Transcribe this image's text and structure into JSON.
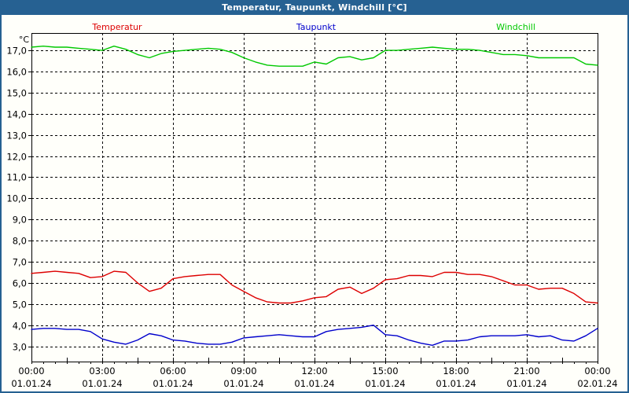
{
  "window": {
    "title": "Temperatur, Taupunkt, Windchill [°C]"
  },
  "legend": [
    {
      "label": "Temperatur",
      "color": "#dd0000"
    },
    {
      "label": "Taupunkt",
      "color": "#0000cc"
    },
    {
      "label": "Windchill",
      "color": "#00c800"
    }
  ],
  "axis": {
    "unit_label": "°C"
  },
  "colors": {
    "frame_blue": "#266192",
    "grid": "#000000"
  },
  "chart_data": {
    "type": "line",
    "title": "Temperatur, Taupunkt, Windchill [°C]",
    "xlabel": "",
    "ylabel": "°C",
    "grid": "dashed",
    "legend_position": "top",
    "xlim": [
      0,
      24
    ],
    "ylim": [
      2.28,
      17.82
    ],
    "x_unit": "hours since 01.01.24 00:00",
    "x": [
      0,
      0.5,
      1,
      1.5,
      2,
      2.5,
      3,
      3.5,
      4,
      4.5,
      5,
      5.5,
      6,
      6.5,
      7,
      7.5,
      8,
      8.5,
      9,
      9.5,
      10,
      10.5,
      11,
      11.5,
      12,
      12.5,
      13,
      13.5,
      14,
      14.5,
      15,
      15.5,
      16,
      16.5,
      17,
      17.5,
      18,
      18.5,
      19,
      19.5,
      20,
      20.5,
      21,
      21.5,
      22,
      22.5,
      23,
      23.5,
      24
    ],
    "y_ticks": [
      {
        "value": 17,
        "label": "17,0"
      },
      {
        "value": 16,
        "label": "16,0"
      },
      {
        "value": 15,
        "label": "15,0"
      },
      {
        "value": 14,
        "label": "14,0"
      },
      {
        "value": 13,
        "label": "13,0"
      },
      {
        "value": 12,
        "label": "12,0"
      },
      {
        "value": 11,
        "label": "11,0"
      },
      {
        "value": 10,
        "label": "10,0"
      },
      {
        "value": 9,
        "label": "9,0"
      },
      {
        "value": 8,
        "label": "8,0"
      },
      {
        "value": 7,
        "label": "7,0"
      },
      {
        "value": 6,
        "label": "6,0"
      },
      {
        "value": 5,
        "label": "5,0"
      },
      {
        "value": 4,
        "label": "4,0"
      },
      {
        "value": 3,
        "label": "3,0"
      }
    ],
    "x_ticks": [
      {
        "hour": 0,
        "time": "00:00",
        "date": "01.01.24"
      },
      {
        "hour": 3,
        "time": "03:00",
        "date": "01.01.24"
      },
      {
        "hour": 6,
        "time": "06:00",
        "date": "01.01.24"
      },
      {
        "hour": 9,
        "time": "09:00",
        "date": "01.01.24"
      },
      {
        "hour": 12,
        "time": "12:00",
        "date": "01.01.24"
      },
      {
        "hour": 15,
        "time": "15:00",
        "date": "01.01.24"
      },
      {
        "hour": 18,
        "time": "18:00",
        "date": "01.01.24"
      },
      {
        "hour": 21,
        "time": "21:00",
        "date": "01.01.24"
      },
      {
        "hour": 24,
        "time": "00:00",
        "date": "02.01.24"
      }
    ],
    "series": [
      {
        "name": "Temperatur",
        "color": "#dd0000",
        "values": [
          6.45,
          6.5,
          6.55,
          6.5,
          6.45,
          6.25,
          6.3,
          6.55,
          6.5,
          6.0,
          5.6,
          5.75,
          6.2,
          6.3,
          6.35,
          6.4,
          6.4,
          5.9,
          5.6,
          5.3,
          5.1,
          5.05,
          5.05,
          5.15,
          5.3,
          5.35,
          5.7,
          5.8,
          5.5,
          5.75,
          6.15,
          6.2,
          6.35,
          6.35,
          6.3,
          6.5,
          6.5,
          6.4,
          6.4,
          6.3,
          6.1,
          5.9,
          5.9,
          5.7,
          5.75,
          5.75,
          5.5,
          5.1,
          5.05
        ]
      },
      {
        "name": "Taupunkt",
        "color": "#0000cc",
        "values": [
          3.8,
          3.85,
          3.85,
          3.8,
          3.8,
          3.7,
          3.35,
          3.2,
          3.1,
          3.3,
          3.6,
          3.5,
          3.3,
          3.25,
          3.15,
          3.1,
          3.1,
          3.2,
          3.4,
          3.45,
          3.5,
          3.55,
          3.5,
          3.45,
          3.45,
          3.7,
          3.8,
          3.85,
          3.9,
          4.0,
          3.55,
          3.5,
          3.3,
          3.15,
          3.05,
          3.25,
          3.25,
          3.3,
          3.45,
          3.5,
          3.5,
          3.5,
          3.55,
          3.45,
          3.5,
          3.3,
          3.25,
          3.5,
          3.85
        ]
      },
      {
        "name": "Windchill",
        "color": "#00c800",
        "values": [
          17.15,
          17.2,
          17.15,
          17.15,
          17.1,
          17.05,
          17.0,
          17.2,
          17.05,
          16.8,
          16.65,
          16.85,
          16.95,
          17.0,
          17.05,
          17.1,
          17.05,
          16.9,
          16.65,
          16.45,
          16.3,
          16.25,
          16.25,
          16.25,
          16.45,
          16.35,
          16.65,
          16.7,
          16.55,
          16.65,
          17.0,
          17.0,
          17.05,
          17.1,
          17.15,
          17.1,
          17.05,
          17.05,
          17.0,
          16.9,
          16.8,
          16.8,
          16.75,
          16.65,
          16.65,
          16.65,
          16.65,
          16.35,
          16.3
        ]
      }
    ]
  }
}
